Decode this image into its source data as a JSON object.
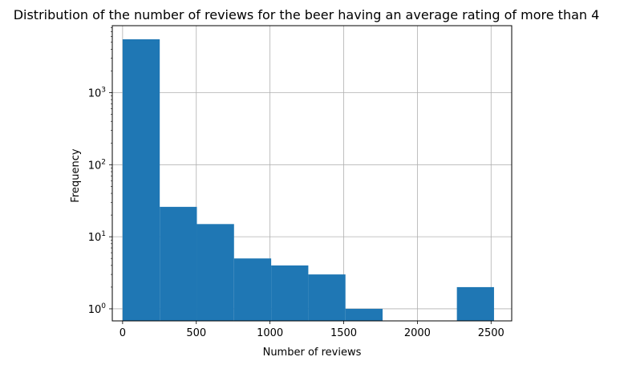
{
  "chart_data": {
    "type": "bar",
    "title": "Distribution of the number of reviews for the beer having an average rating of more than 4",
    "xlabel": "Number of reviews",
    "ylabel": "Frequency",
    "yscale": "log",
    "grid": true,
    "bar_color": "#1f77b4",
    "grid_color": "#b0b0b0",
    "xlim": [
      -70,
      2640
    ],
    "ylim": [
      0.68,
      8500
    ],
    "x_ticks": [
      0,
      500,
      1000,
      1500,
      2000,
      2500
    ],
    "x_tick_labels": [
      "0",
      "500",
      "1000",
      "1500",
      "2000",
      "2500"
    ],
    "y_ticks": [
      1,
      10,
      100,
      1000
    ],
    "y_tick_labels": [
      {
        "base": "10",
        "exp": "0"
      },
      {
        "base": "10",
        "exp": "1"
      },
      {
        "base": "10",
        "exp": "2"
      },
      {
        "base": "10",
        "exp": "3"
      }
    ],
    "bins": [
      {
        "x0": 0,
        "x1": 252,
        "value": 5500
      },
      {
        "x0": 252,
        "x1": 504,
        "value": 26
      },
      {
        "x0": 504,
        "x1": 756,
        "value": 15
      },
      {
        "x0": 756,
        "x1": 1008,
        "value": 5
      },
      {
        "x0": 1008,
        "x1": 1260,
        "value": 4
      },
      {
        "x0": 1260,
        "x1": 1512,
        "value": 3
      },
      {
        "x0": 1512,
        "x1": 1764,
        "value": 1
      },
      {
        "x0": 1764,
        "x1": 2016,
        "value": 0
      },
      {
        "x0": 2016,
        "x1": 2268,
        "value": 0
      },
      {
        "x0": 2268,
        "x1": 2520,
        "value": 2
      }
    ]
  }
}
